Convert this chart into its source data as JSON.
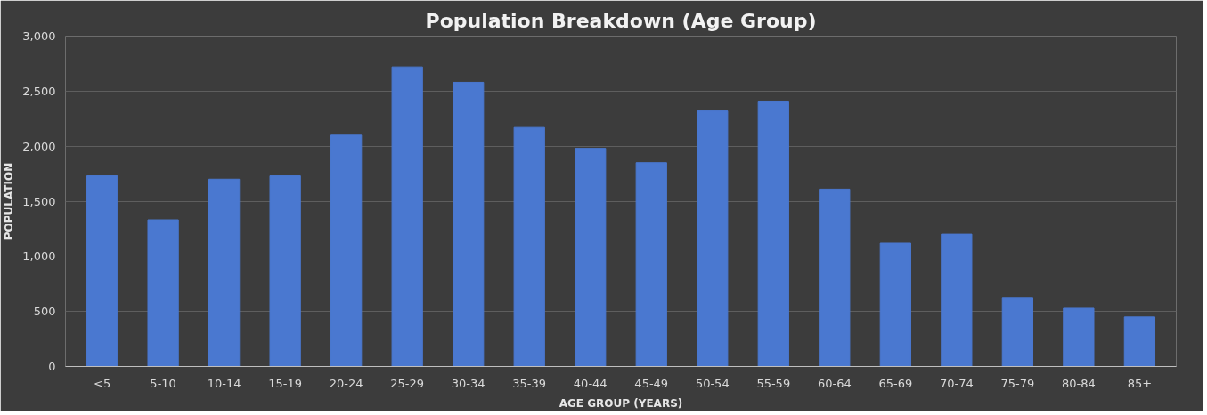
{
  "chart_data": {
    "type": "bar",
    "title": "Population Breakdown (Age Group)",
    "xlabel": "AGE GROUP (YEARS)",
    "ylabel": "POPULATION",
    "categories": [
      "<5",
      "5-10",
      "10-14",
      "15-19",
      "20-24",
      "25-29",
      "30-34",
      "35-39",
      "40-44",
      "45-49",
      "50-54",
      "55-59",
      "60-64",
      "65-69",
      "70-74",
      "75-79",
      "80-84",
      "85+"
    ],
    "values": [
      1730,
      1330,
      1700,
      1730,
      2100,
      2720,
      2580,
      2170,
      1980,
      1850,
      2320,
      2410,
      1610,
      1120,
      1200,
      620,
      530,
      450
    ],
    "color": "#4a78d0",
    "ylim": [
      0,
      3000
    ],
    "yticks": [
      {
        "value": 0,
        "label": "0"
      },
      {
        "value": 500,
        "label": "500"
      },
      {
        "value": 1000,
        "label": "1,000"
      },
      {
        "value": 1500,
        "label": "1,500"
      },
      {
        "value": 2000,
        "label": "2,000"
      },
      {
        "value": 2500,
        "label": "2,500"
      },
      {
        "value": 3000,
        "label": "3,000"
      }
    ],
    "grid": "y"
  }
}
